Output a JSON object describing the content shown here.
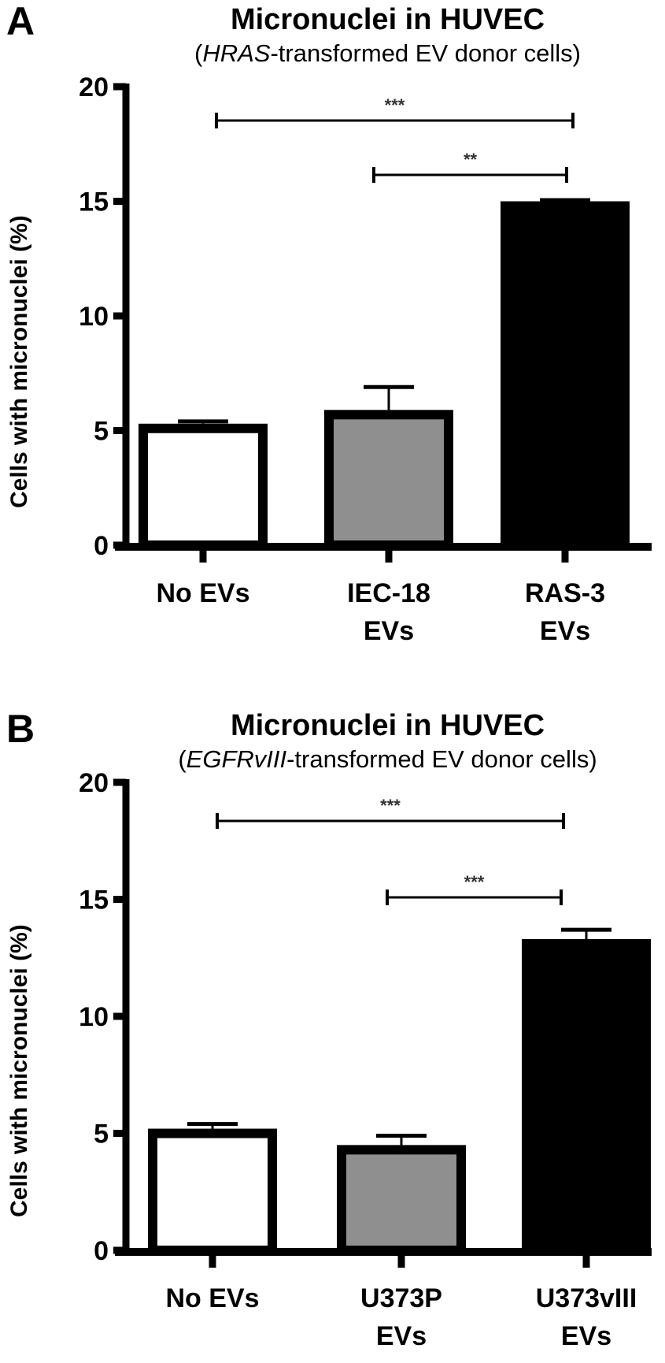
{
  "figure": {
    "panels": [
      {
        "letter": "A",
        "title": "Micronuclei in HUVEC",
        "subtitle_italic": "HRAS",
        "subtitle_rest": "-transformed EV donor cells)",
        "subtitle_open": "(",
        "ylabel": "Cells with micronuclei (%)",
        "yticks": [
          "0",
          "5",
          "10",
          "15",
          "20"
        ],
        "categories": [
          {
            "line1": "No EVs",
            "line2": ""
          },
          {
            "line1": "IEC-18",
            "line2": "EVs"
          },
          {
            "line1": "RAS-3",
            "line2": "EVs"
          }
        ],
        "significance": [
          {
            "from": "No EVs",
            "to": "RAS-3 EVs",
            "label": "***"
          },
          {
            "from": "IEC-18 EVs",
            "to": "RAS-3 EVs",
            "label": "**"
          }
        ]
      },
      {
        "letter": "B",
        "title": "Micronuclei in HUVEC",
        "subtitle_italic": "EGFRvIII",
        "subtitle_rest": "-transformed EV donor cells)",
        "subtitle_open": "(",
        "ylabel": "Cells with micronuclei (%)",
        "yticks": [
          "0",
          "5",
          "10",
          "15",
          "20"
        ],
        "categories": [
          {
            "line1": "No EVs",
            "line2": ""
          },
          {
            "line1": "U373P",
            "line2": "EVs"
          },
          {
            "line1": "U373vIII",
            "line2": "EVs"
          }
        ],
        "significance": [
          {
            "from": "No EVs",
            "to": "U373vIII EVs",
            "label": "***"
          },
          {
            "from": "U373P EVs",
            "to": "U373vIII EVs",
            "label": "***"
          }
        ]
      }
    ],
    "colors": {
      "bar1": "#ffffff",
      "bar2": "#8f8f8f",
      "bar3": "#000000",
      "stroke": "#000000"
    }
  },
  "chart_data": [
    {
      "type": "bar",
      "title": "Micronuclei in HUVEC",
      "subtitle": "(HRAS-transformed EV donor cells)",
      "panel": "A",
      "categories": [
        "No EVs",
        "IEC-18 EVs",
        "RAS-3 EVs"
      ],
      "values": [
        5.3,
        5.9,
        15.0
      ],
      "error_plus": [
        0.1,
        1.0,
        0.05
      ],
      "xlabel": "",
      "ylabel": "Cells with micronuclei (%)",
      "ylim": [
        0,
        20
      ],
      "yticks": [
        0,
        5,
        10,
        15,
        20
      ],
      "bar_colors": [
        "#ffffff",
        "#8f8f8f",
        "#000000"
      ],
      "annotations": [
        {
          "between": [
            "No EVs",
            "RAS-3 EVs"
          ],
          "text": "***"
        },
        {
          "between": [
            "IEC-18 EVs",
            "RAS-3 EVs"
          ],
          "text": "**"
        }
      ],
      "grid": false,
      "legend": "none"
    },
    {
      "type": "bar",
      "title": "Micronuclei in HUVEC",
      "subtitle": "(EGFRvIII-transformed EV donor cells)",
      "panel": "B",
      "categories": [
        "No EVs",
        "U373P EVs",
        "U373vIII EVs"
      ],
      "values": [
        5.2,
        4.5,
        13.3
      ],
      "error_plus": [
        0.2,
        0.4,
        0.4
      ],
      "xlabel": "",
      "ylabel": "Cells with micronuclei (%)",
      "ylim": [
        0,
        20
      ],
      "yticks": [
        0,
        5,
        10,
        15,
        20
      ],
      "bar_colors": [
        "#ffffff",
        "#8f8f8f",
        "#000000"
      ],
      "annotations": [
        {
          "between": [
            "No EVs",
            "U373vIII EVs"
          ],
          "text": "***"
        },
        {
          "between": [
            "U373P EVs",
            "U373vIII EVs"
          ],
          "text": "***"
        }
      ],
      "grid": false,
      "legend": "none"
    }
  ]
}
